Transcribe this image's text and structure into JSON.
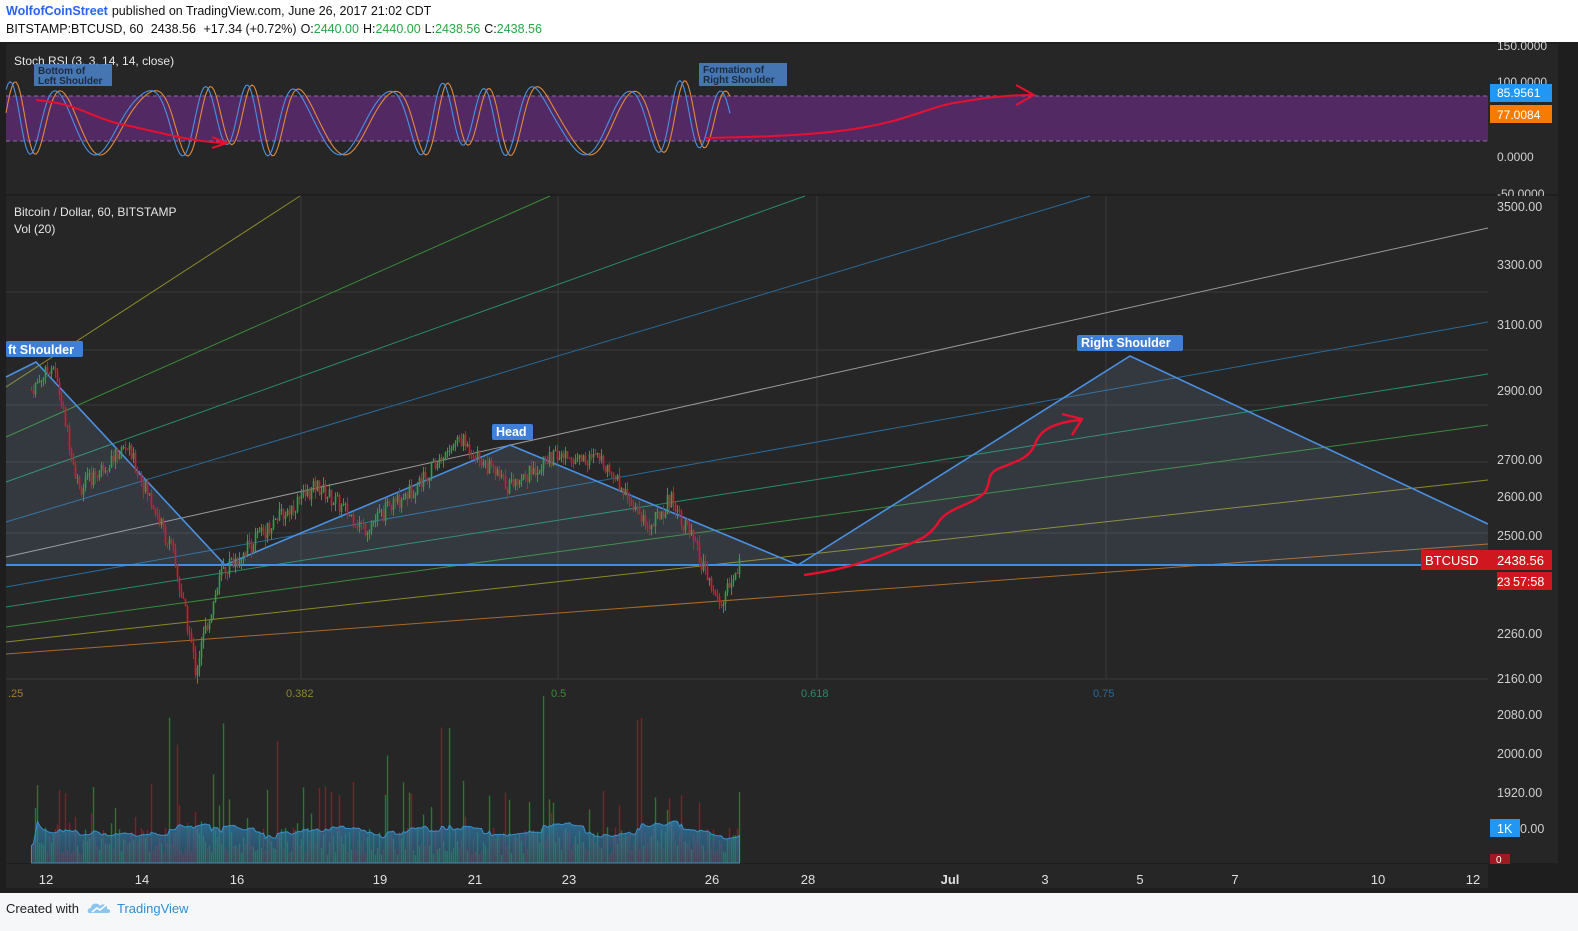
{
  "header": {
    "author": "WolfofCoinStreet",
    "published_text": "published on TradingView.com, June 26, 2017 21:02 CDT",
    "symbol": "BITSTAMP:BTCUSD, 60",
    "last_price": "2438.56",
    "change": "+17.34 (+0.72%)",
    "open_label": "O:",
    "open_value": "2440.00",
    "high_label": "H:",
    "high_value": "2440.00",
    "low_label": "L:",
    "low_value": "2438.56",
    "close_label": "C:",
    "close_value": "2438.56"
  },
  "stoch": {
    "title": "Stoch RSI (3, 3, 14, 14, close)",
    "note_left_line1": "Bottom of",
    "note_left_line2": "Left Shoulder",
    "note_right_line1": "Formation of",
    "note_right_line2": "Right Shoulder",
    "axis_ticks": [
      "150.0000",
      "100.0000",
      "0.0000",
      "-50.0000"
    ],
    "k_label": "85.9561",
    "d_label": "77.0084",
    "colors": {
      "k": "#4a90e2",
      "d": "#e08a3c",
      "band": "#5b2a6e",
      "arrow": "#e8102f"
    }
  },
  "main": {
    "title": "Bitcoin / Dollar, 60, BITSTAMP",
    "vol_title": "Vol (20)",
    "price_ticks": [
      "3500.00",
      "3300.00",
      "3100.00",
      "2900.00",
      "2700.00",
      "2600.00",
      "2500.00",
      "2260.00",
      "2160.00",
      "2080.00",
      "2000.00",
      "1920.00"
    ],
    "price_tag_symbol": "BTCUSD",
    "price_tag_value": "2438.56",
    "countdown": "57:58",
    "vol_tag": "1K",
    "vol_zero": "0",
    "annotations": {
      "left_shoulder": "ft Shoulder",
      "head": "Head",
      "right_shoulder": "Right Shoulder"
    },
    "fib_labels": [
      ".25",
      "0.382",
      "0.5",
      "0.618",
      "0.75"
    ],
    "x_ticks": [
      "12",
      "14",
      "16",
      "19",
      "21",
      "23",
      "26",
      "28",
      "Jul",
      "3",
      "5",
      "7",
      "10",
      "12"
    ],
    "colors": {
      "up": "#26a641",
      "down": "#e8102f",
      "pattern": "#4a90e2",
      "neckline": "#3b8fe6",
      "background": "#262626",
      "tag": "#d0161f"
    }
  },
  "chart_data": {
    "type": "candlestick",
    "title": "Bitcoin / Dollar, 60, BITSTAMP",
    "interval": "60",
    "x_range": [
      "2017-06-12",
      "2017-07-12"
    ],
    "ylim": [
      1920,
      3500
    ],
    "last_close": 2438.56,
    "key_levels": {
      "neckline": 2438,
      "left_shoulder": 2960,
      "head": 2740,
      "right_shoulder_projection": 3000,
      "low": 2160
    },
    "approx_price_path": [
      {
        "x": "2017-06-12",
        "y": 2900
      },
      {
        "x": "2017-06-12",
        "y": 2980
      },
      {
        "x": "2017-06-13",
        "y": 2620
      },
      {
        "x": "2017-06-14",
        "y": 2740
      },
      {
        "x": "2017-06-15",
        "y": 2450
      },
      {
        "x": "2017-06-15",
        "y": 2180
      },
      {
        "x": "2017-06-16",
        "y": 2420
      },
      {
        "x": "2017-06-18",
        "y": 2630
      },
      {
        "x": "2017-06-19",
        "y": 2520
      },
      {
        "x": "2017-06-20",
        "y": 2620
      },
      {
        "x": "2017-06-21",
        "y": 2760
      },
      {
        "x": "2017-06-22",
        "y": 2630
      },
      {
        "x": "2017-06-23",
        "y": 2710
      },
      {
        "x": "2017-06-24",
        "y": 2700
      },
      {
        "x": "2017-06-25",
        "y": 2520
      },
      {
        "x": "2017-06-25",
        "y": 2600
      },
      {
        "x": "2017-06-26",
        "y": 2460
      },
      {
        "x": "2017-06-26",
        "y": 2330
      },
      {
        "x": "2017-06-26",
        "y": 2438.56
      }
    ],
    "projection": [
      {
        "x": "2017-06-27",
        "y": 2438
      },
      {
        "x": "2017-07-05",
        "y": 3000
      },
      {
        "x": "2017-07-12",
        "y": 2500
      }
    ],
    "stoch_rsi": {
      "k": 85.9561,
      "d": 77.0084,
      "ylim": [
        -50,
        150
      ],
      "bands": [
        20,
        80
      ]
    },
    "fib_fan_levels": [
      0.25,
      0.382,
      0.5,
      0.618,
      0.75
    ]
  }
}
